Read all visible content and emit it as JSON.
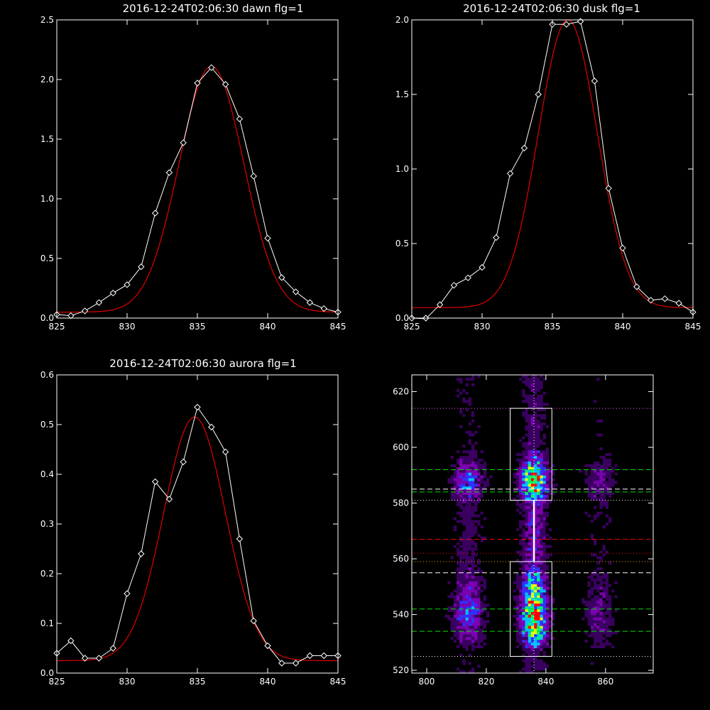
{
  "chart_data": [
    {
      "type": "line",
      "title": "2016-12-24T02:06:30 dawn flg=1",
      "xlim": [
        825,
        845
      ],
      "ylim": [
        0,
        2.5
      ],
      "xticks": [
        825,
        830,
        835,
        840,
        845
      ],
      "yticks": [
        0,
        0.5,
        1.0,
        1.5,
        2.0,
        2.5
      ],
      "ytick_labels": [
        "0.0",
        "0.5",
        "1.0",
        "1.5",
        "2.0",
        "2.5"
      ],
      "series": [
        {
          "color": "#ffffff",
          "marker": "diamond",
          "x": [
            825,
            826,
            827,
            828,
            829,
            830,
            831,
            832,
            833,
            834,
            835,
            836,
            837,
            838,
            839,
            840,
            841,
            842,
            843,
            844,
            845
          ],
          "y": [
            0.03,
            0.02,
            0.06,
            0.13,
            0.21,
            0.28,
            0.43,
            0.88,
            1.22,
            1.47,
            1.97,
            2.1,
            1.96,
            1.67,
            1.19,
            0.67,
            0.34,
            0.22,
            0.13,
            0.08,
            0.05
          ]
        },
        {
          "color": "#e00000",
          "marker": "none",
          "fit": {
            "amp": 2.06,
            "center": 836.0,
            "sigma": 2.3,
            "offset": 0.05
          }
        }
      ]
    },
    {
      "type": "line",
      "title": "2016-12-24T02:06:30 dusk flg=1",
      "xlim": [
        825,
        845
      ],
      "ylim": [
        0,
        2.0
      ],
      "xticks": [
        825,
        830,
        835,
        840,
        845
      ],
      "yticks": [
        0,
        0.5,
        1.0,
        1.5,
        2.0
      ],
      "ytick_labels": [
        "0.0",
        "0.5",
        "1.0",
        "1.5",
        "2.0"
      ],
      "series": [
        {
          "color": "#ffffff",
          "marker": "diamond",
          "x": [
            825,
            826,
            827,
            828,
            829,
            830,
            831,
            832,
            833,
            834,
            835,
            836,
            837,
            838,
            839,
            840,
            841,
            842,
            843,
            844,
            845
          ],
          "y": [
            0.0,
            -0.01,
            0.09,
            0.22,
            0.27,
            0.34,
            0.54,
            0.97,
            1.14,
            1.5,
            1.97,
            1.97,
            1.99,
            1.59,
            0.87,
            0.47,
            0.21,
            0.12,
            0.13,
            0.1,
            0.04
          ]
        },
        {
          "color": "#e00000",
          "marker": "none",
          "fit": {
            "amp": 1.93,
            "center": 836.1,
            "sigma": 2.1,
            "offset": 0.07
          }
        }
      ]
    },
    {
      "type": "line",
      "title": "2016-12-24T02:06:30 aurora flg=1",
      "xlim": [
        825,
        845
      ],
      "ylim": [
        0,
        0.6
      ],
      "xticks": [
        825,
        830,
        835,
        840,
        845
      ],
      "yticks": [
        0,
        0.1,
        0.2,
        0.3,
        0.4,
        0.5,
        0.6
      ],
      "ytick_labels": [
        "0.0",
        "0.1",
        "0.2",
        "0.3",
        "0.4",
        "0.5",
        "0.6"
      ],
      "series": [
        {
          "color": "#ffffff",
          "marker": "diamond",
          "x": [
            825,
            826,
            827,
            828,
            829,
            830,
            831,
            832,
            833,
            834,
            835,
            836,
            837,
            838,
            839,
            840,
            841,
            842,
            843,
            844,
            845
          ],
          "y": [
            0.04,
            0.065,
            0.03,
            0.03,
            0.05,
            0.16,
            0.24,
            0.385,
            0.35,
            0.425,
            0.535,
            0.495,
            0.445,
            0.27,
            0.105,
            0.055,
            0.02,
            0.02,
            0.035,
            0.035,
            0.035
          ]
        },
        {
          "color": "#e00000",
          "marker": "none",
          "fit": {
            "amp": 0.49,
            "center": 834.8,
            "sigma": 2.2,
            "offset": 0.025
          }
        }
      ]
    },
    {
      "type": "heatmap",
      "title": "",
      "xlim": [
        795,
        876
      ],
      "ylim": [
        519,
        626
      ],
      "xticks": [
        800,
        820,
        840,
        860
      ],
      "yticks": [
        520,
        540,
        560,
        580,
        600,
        620
      ],
      "colormap": [
        "#000000",
        "#3a0060",
        "#7a00b0",
        "#3030ff",
        "#00c0ff",
        "#00ff60",
        "#e0ff00",
        "#ff0000"
      ],
      "emission_columns": [
        {
          "center": 814,
          "width": 3.5,
          "strength": 0.45
        },
        {
          "center": 836,
          "width": 3.0,
          "strength": 1.0
        },
        {
          "center": 858,
          "width": 3.5,
          "strength": 0.25
        }
      ],
      "emission_bands": [
        {
          "center": 588,
          "width": 6,
          "strength": 1.0
        },
        {
          "center": 540,
          "width": 9,
          "strength": 1.0
        },
        {
          "center": 548,
          "width": 8,
          "strength": 0.7
        }
      ],
      "boxes": [
        {
          "x": [
            828,
            842
          ],
          "y": [
            581,
            614
          ]
        },
        {
          "x": [
            828,
            842
          ],
          "y": [
            525,
            559
          ]
        }
      ],
      "vertical_line": {
        "x": 836,
        "color": "#ffffff",
        "style": "dotted"
      },
      "hlines": [
        {
          "y": 614,
          "color": "#ff60ff",
          "style": "dotted"
        },
        {
          "y": 592,
          "color": "#00e000",
          "style": "dashed"
        },
        {
          "y": 585,
          "color": "#ffffff",
          "style": "dashed"
        },
        {
          "y": 584,
          "color": "#00e000",
          "style": "dashed"
        },
        {
          "y": 581,
          "color": "#ffffff",
          "style": "dotted"
        },
        {
          "y": 567,
          "color": "#ff0000",
          "style": "dashed"
        },
        {
          "y": 562,
          "color": "#ff0000",
          "style": "dotted"
        },
        {
          "y": 559,
          "color": "#ffa000",
          "style": "dotted"
        },
        {
          "y": 555,
          "color": "#ffffff",
          "style": "dashed"
        },
        {
          "y": 542,
          "color": "#00e000",
          "style": "dashed"
        },
        {
          "y": 534,
          "color": "#00e000",
          "style": "dashed"
        },
        {
          "y": 525,
          "color": "#ffffff",
          "style": "dotted"
        }
      ]
    }
  ]
}
